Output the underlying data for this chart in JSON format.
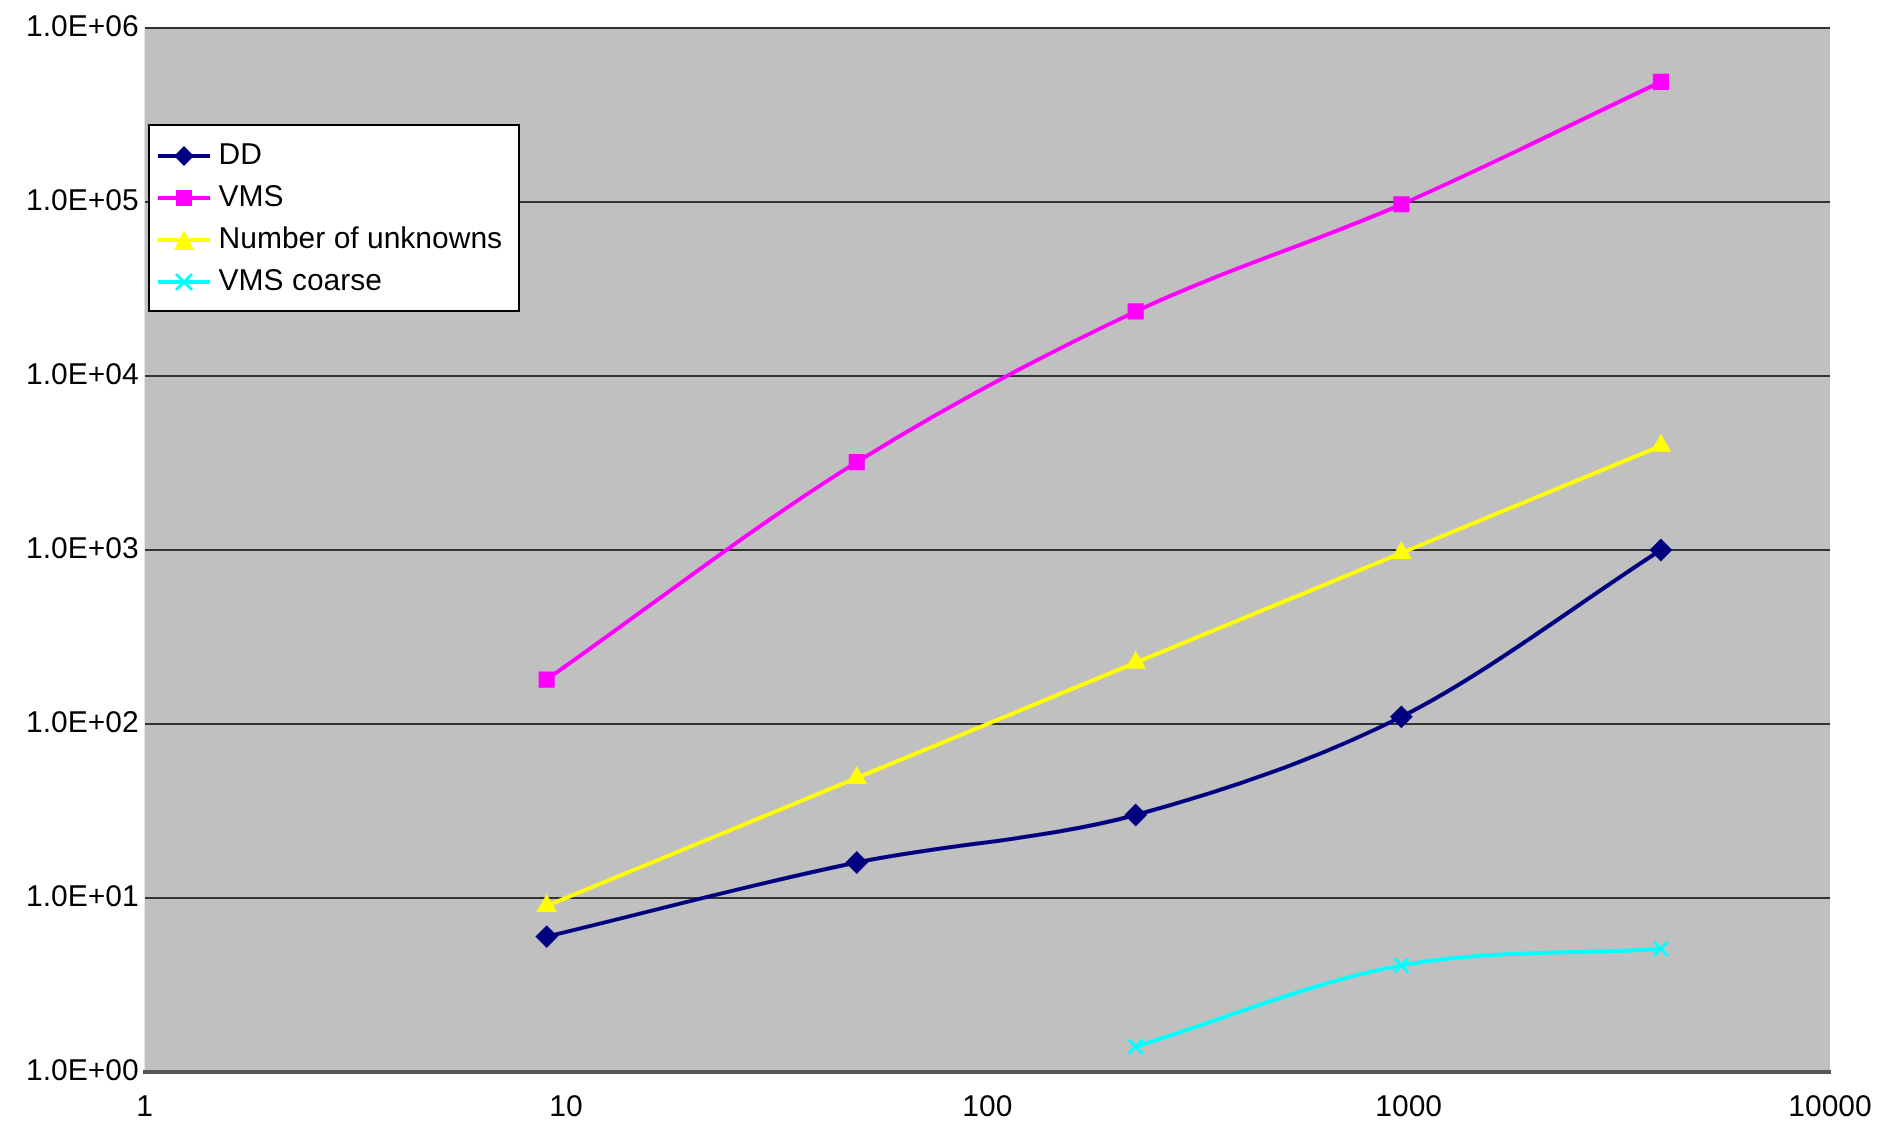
{
  "chart_data": {
    "type": "line",
    "x": [
      9,
      49,
      225,
      961,
      3969
    ],
    "series": [
      {
        "name": "DD",
        "color": "#000080",
        "marker": "diamond",
        "values": [
          6,
          16,
          30,
          110,
          1000
        ]
      },
      {
        "name": "VMS",
        "color": "#ff00ff",
        "marker": "square",
        "values": [
          180,
          3200,
          23500,
          97000,
          490000
        ]
      },
      {
        "name": "Number of unknowns",
        "color": "#ffff00",
        "marker": "triangle",
        "values": [
          9,
          49,
          225,
          961,
          3969
        ]
      },
      {
        "name": "VMS coarse",
        "color": "#00ffff",
        "marker": "cross",
        "values": [
          null,
          null,
          1.4,
          4.1,
          5.1
        ]
      }
    ],
    "log": "xy",
    "xlim": [
      1,
      10000
    ],
    "xticks": [
      1,
      10,
      100,
      1000,
      10000
    ],
    "ylim": [
      1,
      1000000
    ],
    "yticks": [
      {
        "value": 1,
        "label": "1.0E+00"
      },
      {
        "value": 10,
        "label": "1.0E+01"
      },
      {
        "value": 100,
        "label": "1.0E+02"
      },
      {
        "value": 1000,
        "label": "1.0E+03"
      },
      {
        "value": 10000,
        "label": "1.0E+04"
      },
      {
        "value": 100000,
        "label": "1.0E+05"
      },
      {
        "value": 1000000,
        "label": "1.0E+06"
      }
    ],
    "grid": "y",
    "legend": "top left"
  }
}
